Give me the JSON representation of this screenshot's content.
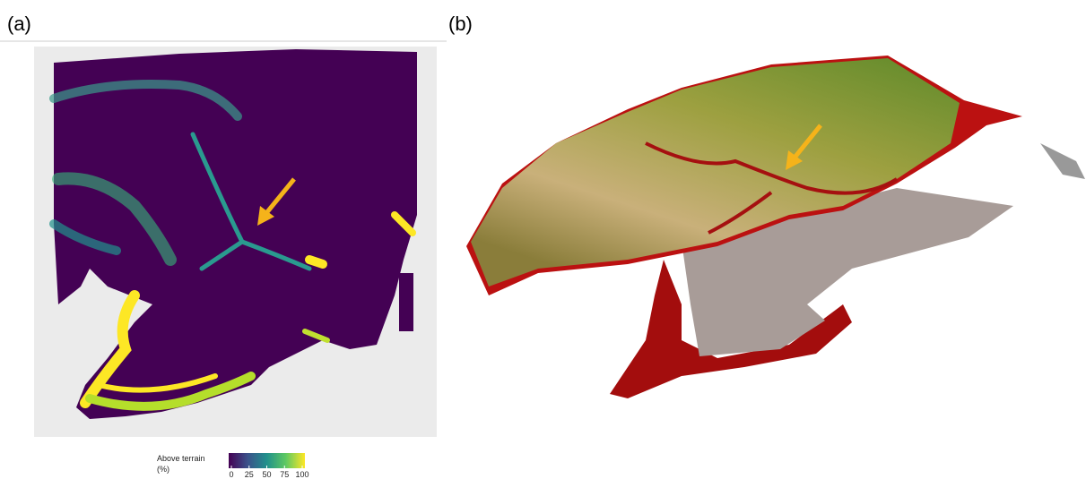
{
  "panels": [
    {
      "label": "(a)"
    },
    {
      "label": "(b)"
    }
  ],
  "legend": {
    "title": "Above terrain",
    "unit": "(%)",
    "ticks": [
      0,
      25,
      50,
      75,
      100
    ]
  }
}
